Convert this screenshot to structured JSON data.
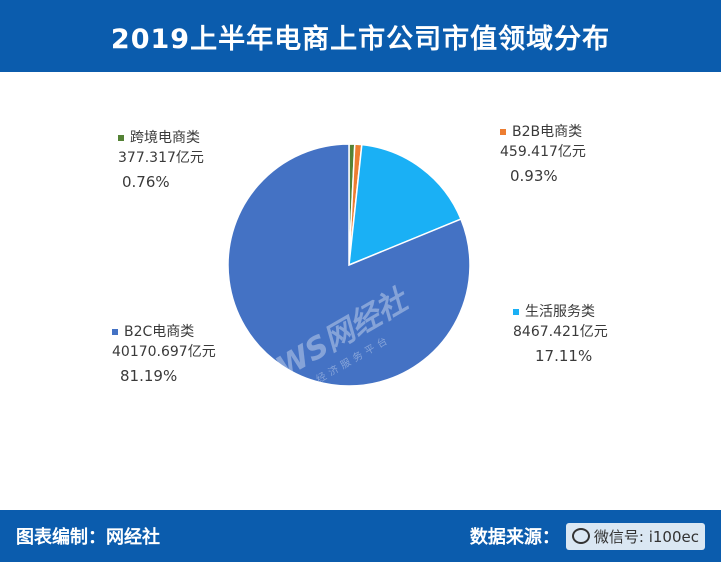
{
  "header": {
    "title": "2019上半年电商上市公司市值领域分布"
  },
  "chart_data": {
    "type": "pie",
    "title": "2019上半年电商上市公司市值领域分布",
    "slices": [
      {
        "name": "跨境电商类",
        "value": 377.317,
        "value_label": "377.317亿元",
        "percent": 0.76,
        "percent_label": "0.76%",
        "color": "#548235"
      },
      {
        "name": "B2B电商类",
        "value": 459.417,
        "value_label": "459.417亿元",
        "percent": 0.93,
        "percent_label": "0.93%",
        "color": "#ed7d31"
      },
      {
        "name": "生活服务类",
        "value": 8467.421,
        "value_label": "8467.421亿元",
        "percent": 17.11,
        "percent_label": "17.11%",
        "color": "#1ab0f5"
      },
      {
        "name": "B2C电商类",
        "value": 40170.697,
        "value_label": "40170.697亿元",
        "percent": 81.19,
        "percent_label": "81.19%",
        "color": "#4472c4"
      }
    ]
  },
  "watermark": {
    "logo": "WS网经社",
    "sub": "网络经济服务平台"
  },
  "footer": {
    "left": "图表编制：网经社",
    "source_label": "数据来源：",
    "source_url": "WWW.100EC.CN",
    "wechat": "微信号: i100ec"
  }
}
